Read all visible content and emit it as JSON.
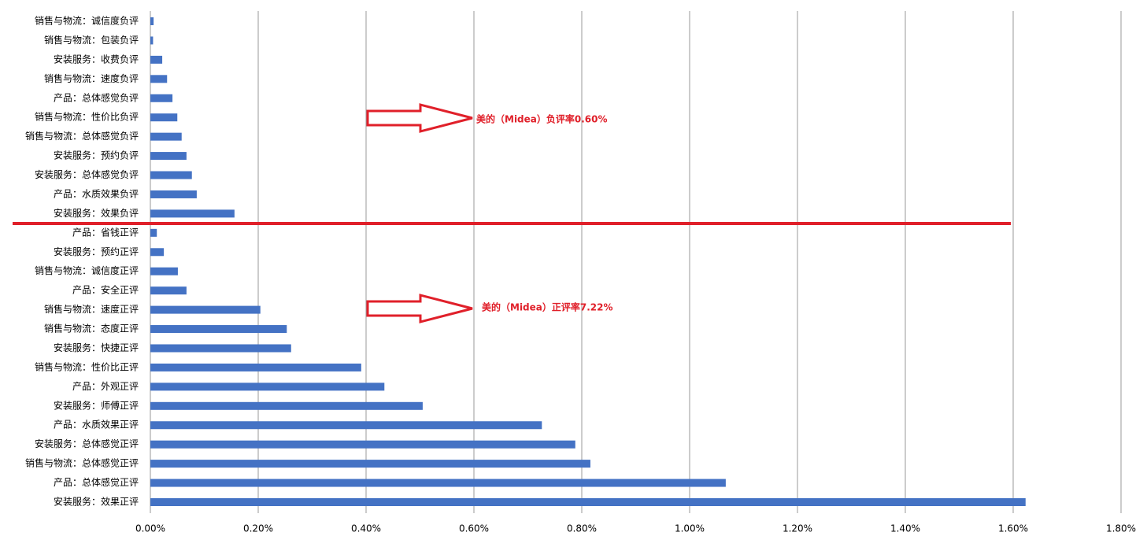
{
  "chart_data": {
    "type": "barh",
    "categories": [
      "销售与物流：诚信度负评",
      "销售与物流：包装负评",
      "安装服务：收费负评",
      "销售与物流：速度负评",
      "产品：总体感觉负评",
      "销售与物流：性价比负评",
      "销售与物流：总体感觉负评",
      "安装服务：预约负评",
      "安装服务：总体感觉负评",
      "产品：水质效果负评",
      "安装服务：效果负评",
      "产品：省钱正评",
      "安装服务：预约正评",
      "销售与物流：诚信度正评",
      "产品：安全正评",
      "销售与物流：速度正评",
      "销售与物流：态度正评",
      "安装服务：快捷正评",
      "销售与物流：性价比正评",
      "产品：外观正评",
      "安装服务：师傅正评",
      "产品：水质效果正评",
      "安装服务：总体感觉正评",
      "销售与物流：总体感觉正评",
      "产品：总体感觉正评",
      "安装服务：效果正评"
    ],
    "values": [
      0.006,
      0.005,
      0.022,
      0.031,
      0.041,
      0.05,
      0.058,
      0.067,
      0.077,
      0.086,
      0.156,
      0.012,
      0.025,
      0.051,
      0.067,
      0.204,
      0.253,
      0.261,
      0.391,
      0.434,
      0.505,
      0.726,
      0.788,
      0.816,
      1.067,
      1.623
    ],
    "color": "#4472c4",
    "xlim": [
      0,
      1.8
    ],
    "xticks": [
      {
        "value": 0,
        "label": "0.00%"
      },
      {
        "value": 0.2,
        "label": "0.20%"
      },
      {
        "value": 0.4,
        "label": "0.40%"
      },
      {
        "value": 0.6,
        "label": "0.60%"
      },
      {
        "value": 0.8,
        "label": "0.80%"
      },
      {
        "value": 1.0,
        "label": "1.00%"
      },
      {
        "value": 1.2,
        "label": "1.20%"
      },
      {
        "value": 1.4,
        "label": "1.40%"
      },
      {
        "value": 1.6,
        "label": "1.60%"
      },
      {
        "value": 1.8,
        "label": "1.80%"
      }
    ],
    "grid": true,
    "annotations": [
      "美的（Midea）负评率0.60%",
      "美的（Midea）正评率7.22%"
    ]
  }
}
